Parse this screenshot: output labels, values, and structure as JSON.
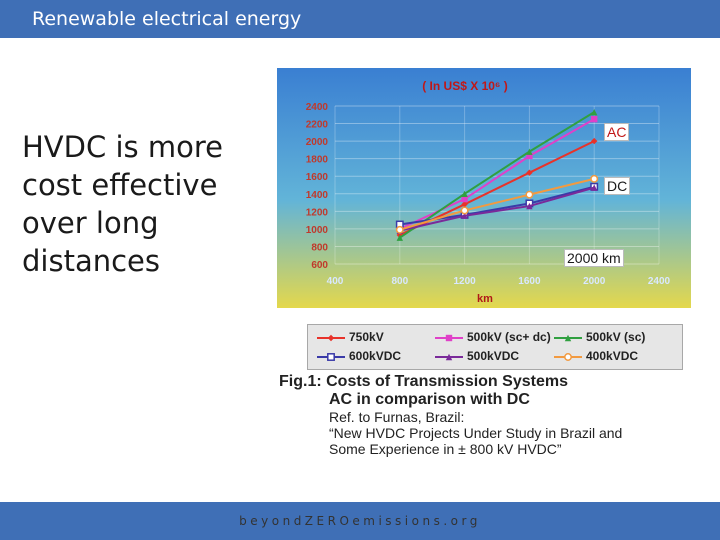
{
  "slide": {
    "title": "Renewable electrical energy",
    "body_lines": [
      "HVDC is more",
      "cost effective",
      "over long",
      "distances"
    ],
    "footer": "beyondZEROemissions.org"
  },
  "figure": {
    "caption_main": "Fig.1: Costs of Transmission Systems",
    "caption_sub": "AC in comparison with DC",
    "caption_ref": "Ref. to Furnas, Brazil:",
    "caption_quote_1": "“New HVDC Projects Under Study in Brazil and",
    "caption_quote_2": "Some Experience in ± 800 kV HVDC”"
  },
  "annotations": {
    "ac": "AC",
    "dc": "DC",
    "distance": "2000 km"
  },
  "colors": {
    "bar": "#3f6fb6",
    "plot_bg_top": "#3a7fd2",
    "plot_bg_bottom": "#e4d84c"
  },
  "chart_data": {
    "type": "line",
    "title": "( In US$ X 10⁶ )",
    "xlabel": "km",
    "ylabel": "",
    "xlim": [
      400,
      2400
    ],
    "ylim": [
      600,
      2400
    ],
    "xticks": [
      400,
      800,
      1200,
      1600,
      2000,
      2400
    ],
    "yticks": [
      600,
      800,
      1000,
      1200,
      1400,
      1600,
      1800,
      2000,
      2200,
      2400
    ],
    "grid": true,
    "legend_position": "below",
    "x": [
      800,
      1200,
      1600,
      2000
    ],
    "series": [
      {
        "name": "750kV",
        "color": "#e8322a",
        "marker": "diamond",
        "values": [
          930,
          1280,
          1640,
          2000
        ]
      },
      {
        "name": "500kV (sc+ dc)",
        "color": "#e040c8",
        "marker": "square",
        "values": [
          1000,
          1340,
          1830,
          2250
        ]
      },
      {
        "name": "500kV (sc)",
        "color": "#30a040",
        "marker": "triangle",
        "values": [
          900,
          1400,
          1880,
          2330
        ]
      },
      {
        "name": "600kVDC",
        "color": "#3a3aa8",
        "marker": "square-open",
        "values": [
          1050,
          1160,
          1290,
          1480
        ]
      },
      {
        "name": "500kVDC",
        "color": "#7a2a9a",
        "marker": "triangle",
        "values": [
          980,
          1150,
          1260,
          1470
        ]
      },
      {
        "name": "400kVDC",
        "color": "#f29a40",
        "marker": "circle-open",
        "values": [
          990,
          1210,
          1390,
          1570
        ]
      }
    ]
  }
}
